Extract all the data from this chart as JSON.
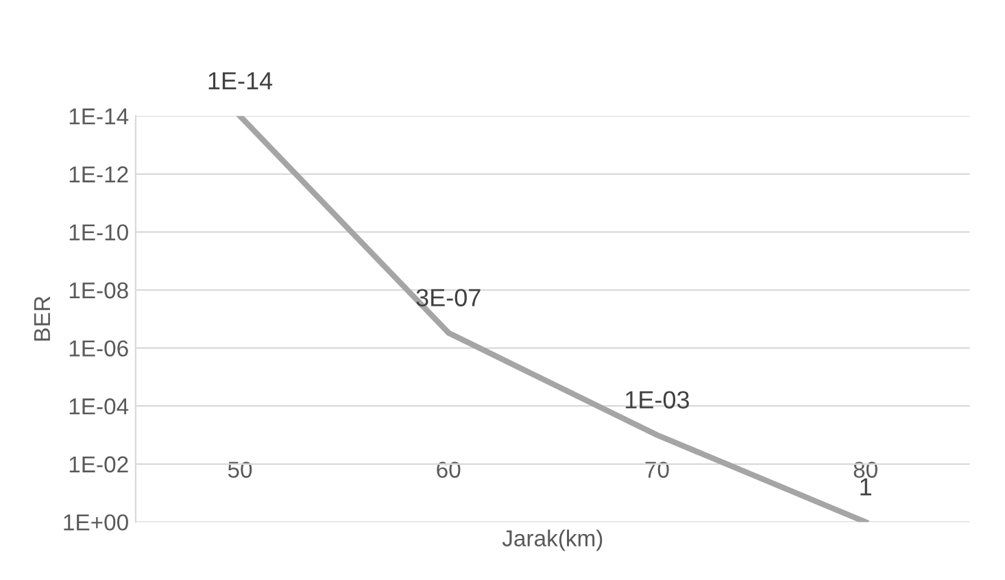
{
  "chart_data": {
    "type": "line",
    "xlabel": "Jarak(km)",
    "ylabel": "BER",
    "categories": [
      "50",
      "60",
      "70",
      "80"
    ],
    "series": [
      {
        "color": "#a5a5a5",
        "values": [
          1e-14,
          3e-07,
          0.001,
          1
        ]
      }
    ],
    "value_labels": [
      "1E-14",
      "3E-07",
      "1E-03",
      "1"
    ],
    "log": "y",
    "ylim": [
      1,
      1e-14
    ],
    "yticks": [
      {
        "value": 1,
        "label": "1E+00"
      },
      {
        "value": 0.01,
        "label": "1E-02"
      },
      {
        "value": 0.0001,
        "label": "1E-04"
      },
      {
        "value": 1e-06,
        "label": "1E-06"
      },
      {
        "value": 1e-08,
        "label": "1E-08"
      },
      {
        "value": 1e-10,
        "label": "1E-10"
      },
      {
        "value": 1e-12,
        "label": "1E-12"
      },
      {
        "value": 1e-14,
        "label": "1E-14"
      }
    ],
    "grid": "y",
    "legend": false,
    "marker": "none",
    "line_style": "solid"
  }
}
